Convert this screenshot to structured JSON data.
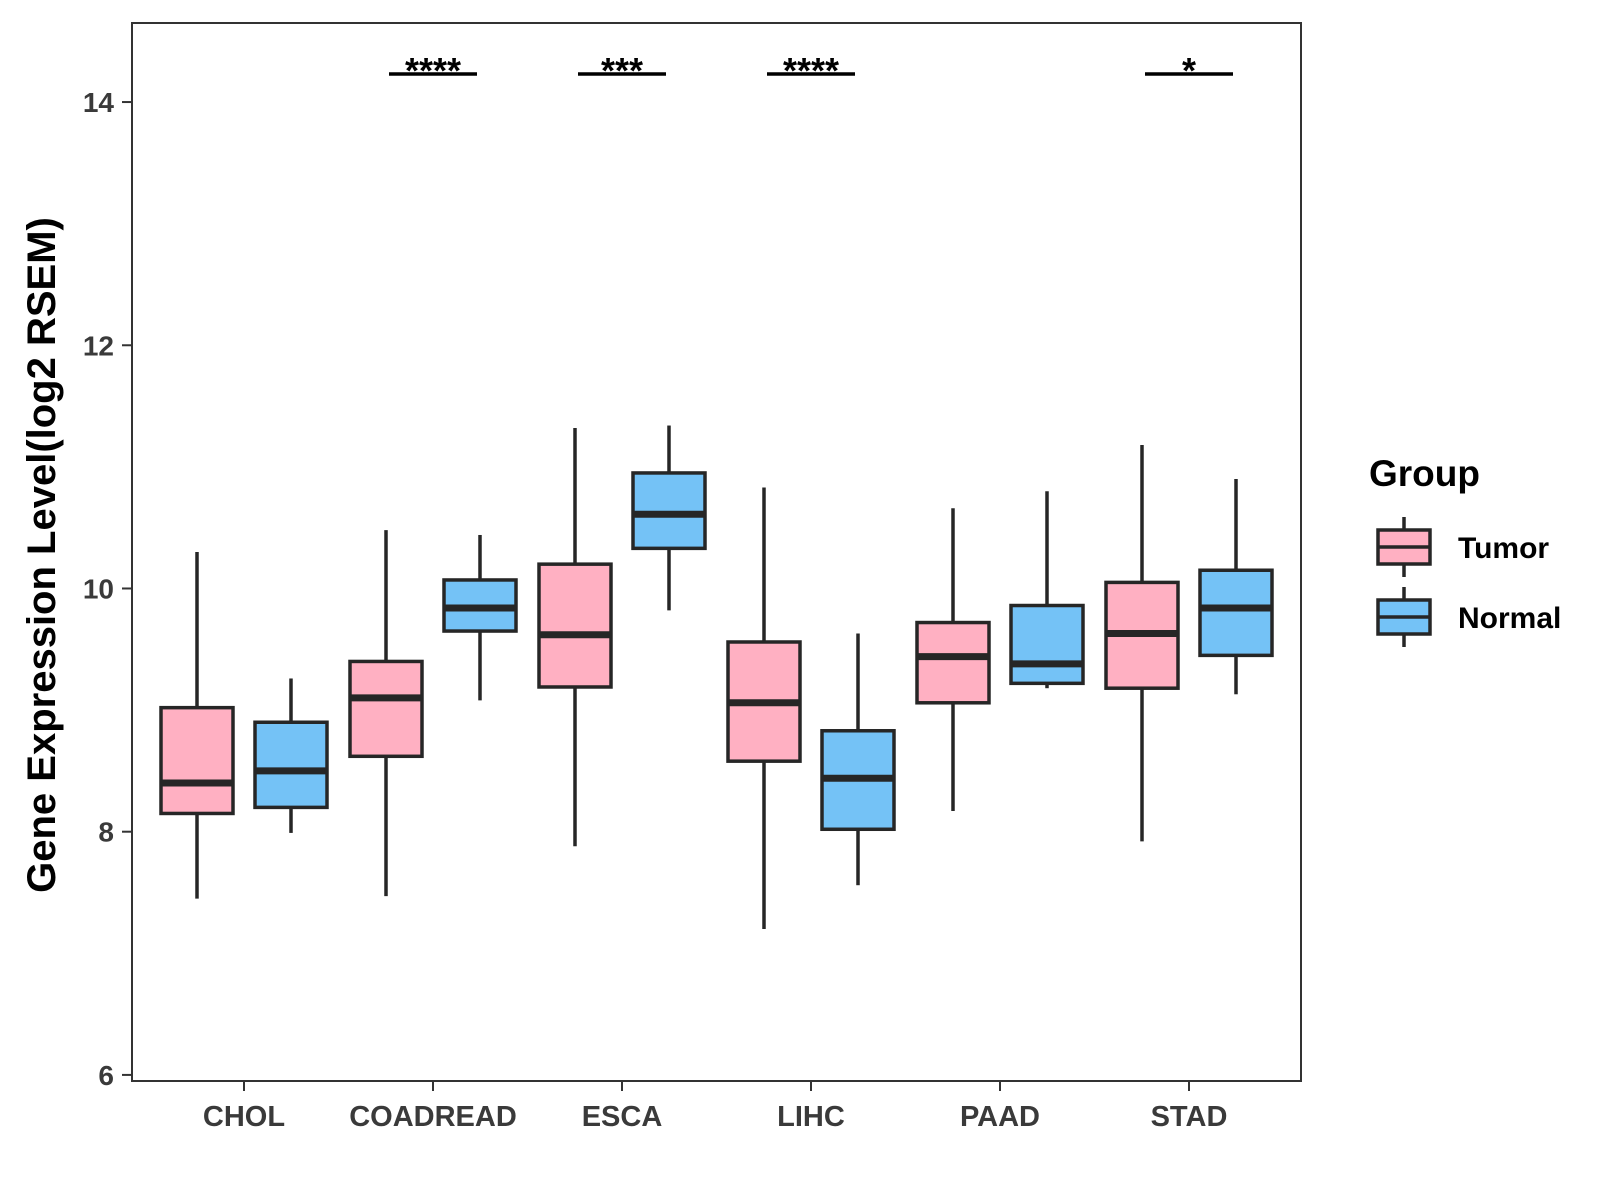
{
  "chart_data": {
    "type": "box",
    "title": "",
    "xlabel": "",
    "ylabel": "Gene Expression Level(log2 RSEM)",
    "ylim": [
      5.95,
      14.65
    ],
    "yticks": [
      6,
      8,
      10,
      12,
      14
    ],
    "ytick_labels": [
      "6",
      "8",
      "10",
      "12",
      "14"
    ],
    "grid": false,
    "legend": {
      "title": "Group",
      "position": "right"
    },
    "categories": [
      "CHOL",
      "COADREAD",
      "ESCA",
      "LIHC",
      "PAAD",
      "STAD"
    ],
    "series": [
      {
        "name": "Tumor",
        "color": "#FFB0C2",
        "boxes": [
          {
            "min": 7.45,
            "q1": 8.15,
            "median": 8.4,
            "q3": 9.02,
            "max": 10.3
          },
          {
            "min": 7.47,
            "q1": 8.62,
            "median": 9.1,
            "q3": 9.4,
            "max": 10.48
          },
          {
            "min": 7.88,
            "q1": 9.19,
            "median": 9.62,
            "q3": 10.2,
            "max": 11.32
          },
          {
            "min": 7.2,
            "q1": 8.58,
            "median": 9.06,
            "q3": 9.56,
            "max": 10.83
          },
          {
            "min": 8.17,
            "q1": 9.06,
            "median": 9.44,
            "q3": 9.72,
            "max": 10.66
          },
          {
            "min": 7.92,
            "q1": 9.18,
            "median": 9.63,
            "q3": 10.05,
            "max": 11.18
          }
        ]
      },
      {
        "name": "Normal",
        "color": "#74C2F6",
        "boxes": [
          {
            "min": 7.99,
            "q1": 8.2,
            "median": 8.5,
            "q3": 8.9,
            "max": 9.26
          },
          {
            "min": 9.08,
            "q1": 9.65,
            "median": 9.84,
            "q3": 10.07,
            "max": 10.44
          },
          {
            "min": 9.82,
            "q1": 10.33,
            "median": 10.61,
            "q3": 10.95,
            "max": 11.34
          },
          {
            "min": 7.56,
            "q1": 8.02,
            "median": 8.44,
            "q3": 8.83,
            "max": 9.63
          },
          {
            "min": 9.18,
            "q1": 9.22,
            "median": 9.38,
            "q3": 9.86,
            "max": 10.8
          },
          {
            "min": 9.13,
            "q1": 9.45,
            "median": 9.84,
            "q3": 10.15,
            "max": 10.9
          }
        ]
      }
    ],
    "significance": [
      {
        "category": "CHOL",
        "label": ""
      },
      {
        "category": "COADREAD",
        "label": "****"
      },
      {
        "category": "ESCA",
        "label": "***"
      },
      {
        "category": "LIHC",
        "label": "****"
      },
      {
        "category": "PAAD",
        "label": ""
      },
      {
        "category": "STAD",
        "label": "*"
      }
    ]
  },
  "colors": {
    "tumor_fill": "#FFB0C2",
    "normal_fill": "#74C2F6",
    "stroke": "#262626",
    "axis": "#333333"
  }
}
